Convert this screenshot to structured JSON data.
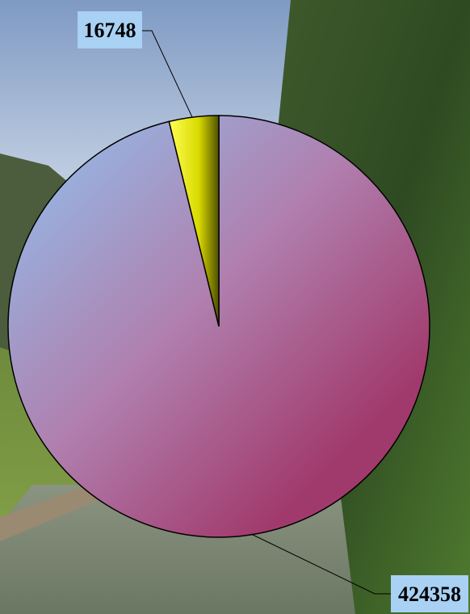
{
  "chart_data": {
    "type": "pie",
    "slices": [
      {
        "value": 424358,
        "label": "424358",
        "color": "#a13a6c"
      },
      {
        "value": 16748,
        "label": "16748",
        "color": "#e3e300"
      }
    ],
    "legend": "none"
  },
  "colors": {
    "label_box": "#a8d1f3",
    "outline": "#000000"
  }
}
